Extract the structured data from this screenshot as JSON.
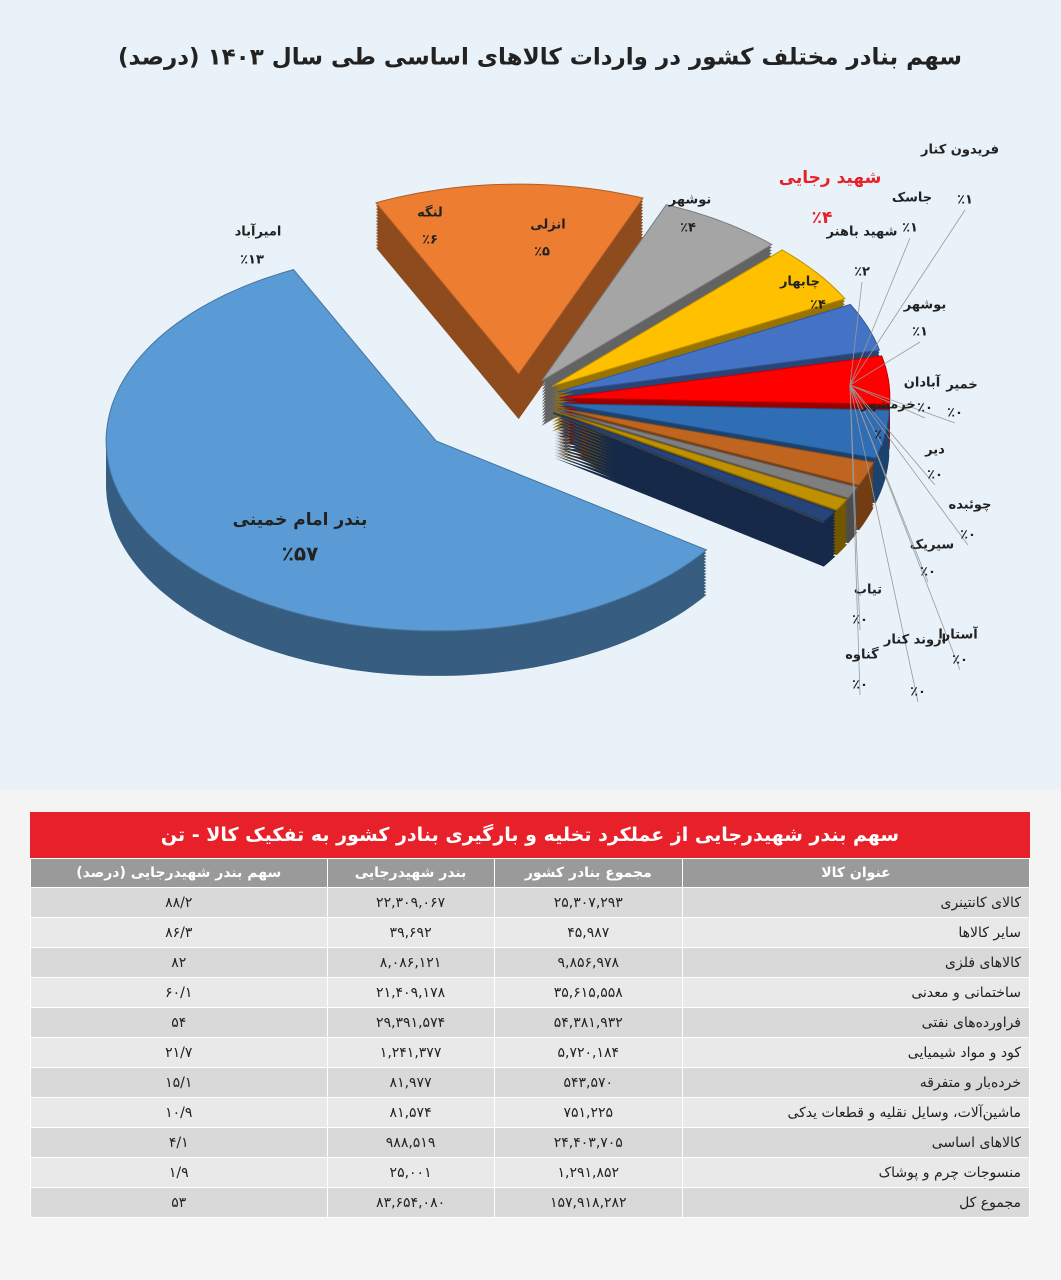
{
  "chart_data": {
    "type": "pie",
    "title": "سهم بنادر مختلف کشور در واردات کالاهای اساسی طی سال ۱۴۰۳ (درصد)",
    "categories": [
      "بندر امام خمینی",
      "امیرآباد",
      "لنگه",
      "انزلی",
      "نوشهر",
      "شهید رجایی",
      "چابهار",
      "شهید باهنر",
      "بوشهر",
      "جاسک",
      "فریدون کنار",
      "خمیر",
      "آبادان",
      "خرمشهر",
      "دیر",
      "چوئبده",
      "سیریک",
      "تیاب",
      "آستارا",
      "اروند کنار",
      "گناوه"
    ],
    "values": [
      57,
      13,
      6,
      5,
      4,
      4,
      4,
      2,
      1,
      1,
      1,
      0,
      0,
      0,
      0,
      0,
      0,
      0,
      0,
      0,
      0
    ],
    "value_labels": [
      "٪۵۷",
      "٪۱۳",
      "٪۶",
      "٪۵",
      "٪۴",
      "٪۴",
      "٪۴",
      "٪۲",
      "٪۱",
      "٪۱",
      "٪۱",
      "٪۰",
      "٪۰",
      "٪۰",
      "٪۰",
      "٪۰",
      "٪۰",
      "٪۰",
      "٪۰",
      "٪۰",
      "٪۰"
    ],
    "colors": [
      "#5b9bd5",
      "#ed7d31",
      "#a5a5a5",
      "#ffc000",
      "#4472c4",
      "#ff0000",
      "#2f6eb5",
      "#c0651f",
      "#7f7f7f",
      "#bf9000",
      "#264478",
      "#636363",
      "#997300",
      "#255e91",
      "#43682b",
      "#698ed0",
      "#f1975a",
      "#b7b7b7",
      "#ffcd33",
      "#7cafdd",
      "#333f50"
    ],
    "highlight": "شهید رجایی",
    "highlight_color": "#e8202a"
  },
  "table": {
    "title": "سهم بندر شهیدرجایی از عملکرد تخلیه و بارگیری بنادر کشور به تفکیک کالا - تن",
    "header": [
      "عنوان کالا",
      "مجموع بنادر کشور",
      "بندر شهیدرجایی",
      "سهم بندر شهیدرجایی (درصد)"
    ],
    "rows": [
      [
        "کالای کانتینری",
        "۲۵,۳۰۷,۲۹۳",
        "۲۲,۳۰۹,۰۶۷",
        "۸۸/۲"
      ],
      [
        "سایر کالاها",
        "۴۵,۹۸۷",
        "۳۹,۶۹۲",
        "۸۶/۳"
      ],
      [
        "کالاهای فلزی",
        "۹,۸۵۶,۹۷۸",
        "۸,۰۸۶,۱۲۱",
        "۸۲"
      ],
      [
        "ساختمانی و معدنی",
        "۳۵,۶۱۵,۵۵۸",
        "۲۱,۴۰۹,۱۷۸",
        "۶۰/۱"
      ],
      [
        "فراورده‌های نفتی",
        "۵۴,۳۸۱,۹۳۲",
        "۲۹,۳۹۱,۵۷۴",
        "۵۴"
      ],
      [
        "کود و مواد شیمیایی",
        "۵,۷۲۰,۱۸۴",
        "۱,۲۴۱,۳۷۷",
        "۲۱/۷"
      ],
      [
        "خرده‌بار و متفرقه",
        "۵۴۳,۵۷۰",
        "۸۱,۹۷۷",
        "۱۵/۱"
      ],
      [
        "ماشین‌آلات، وسایل نقلیه و قطعات یدکی",
        "۷۵۱,۲۲۵",
        "۸۱,۵۷۴",
        "۱۰/۹"
      ],
      [
        "کالاهای اساسی",
        "۲۴,۴۰۳,۷۰۵",
        "۹۸۸,۵۱۹",
        "۴/۱"
      ],
      [
        "منسوجات چرم و پوشاک",
        "۱,۲۹۱,۸۵۲",
        "۲۵,۰۰۱",
        "۱/۹"
      ],
      [
        "مجموع کل",
        "۱۵۷,۹۱۸,۲۸۲",
        "۸۳,۶۵۴,۰۸۰",
        "۵۳"
      ]
    ]
  }
}
